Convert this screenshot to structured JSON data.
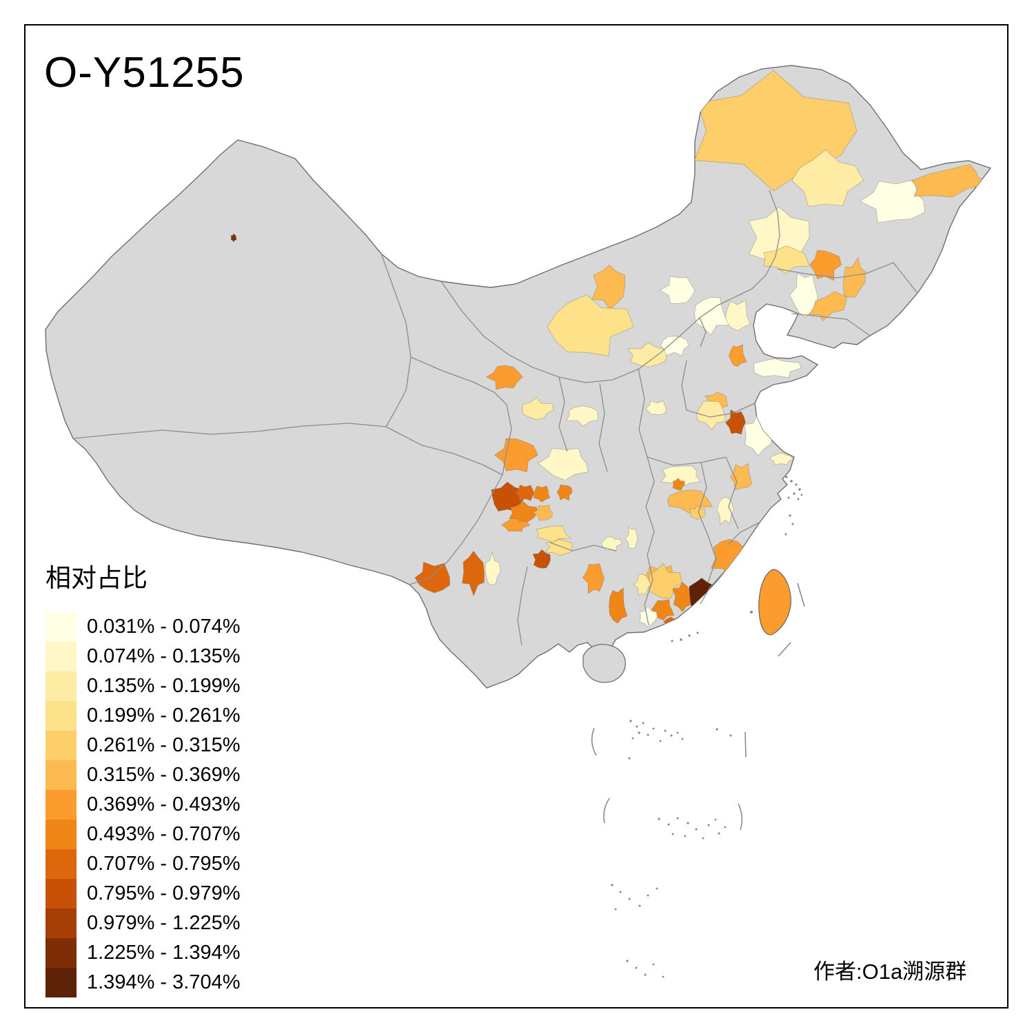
{
  "title": "O-Y51255",
  "attribution": "作者:O1a溯源群",
  "legend": {
    "title": "相对占比",
    "items": [
      {
        "range": "0.031% - 0.074%",
        "color": "#FFFFE3"
      },
      {
        "range": "0.074% - 0.135%",
        "color": "#FFF7C5"
      },
      {
        "range": "0.135% - 0.199%",
        "color": "#FEECA4"
      },
      {
        "range": "0.199% - 0.261%",
        "color": "#FDE289"
      },
      {
        "range": "0.261% - 0.315%",
        "color": "#FDCE6A"
      },
      {
        "range": "0.315% - 0.369%",
        "color": "#FDBA50"
      },
      {
        "range": "0.369% - 0.493%",
        "color": "#FC9C2F"
      },
      {
        "range": "0.493% - 0.707%",
        "color": "#F08518"
      },
      {
        "range": "0.707% - 0.795%",
        "color": "#DE660D"
      },
      {
        "range": "0.795% - 0.979%",
        "color": "#C75106"
      },
      {
        "range": "0.979% - 1.225%",
        "color": "#A63E05"
      },
      {
        "range": "1.225% - 1.394%",
        "color": "#7F2D05"
      },
      {
        "range": "1.394% - 3.704%",
        "color": "#5E2306"
      }
    ]
  },
  "map": {
    "no_data_fill": "#D8D8D8",
    "boundary_color": "#8C8C8C",
    "taiwan_class": 7,
    "region_fields": [
      "name",
      "class",
      "cx",
      "cy",
      "rx",
      "ry",
      "rot"
    ],
    "regions": [
      [
        "hulunbuir",
        5,
        1122,
        190,
        112,
        72,
        0
      ],
      [
        "daxinganling-east",
        3,
        1198,
        262,
        44,
        38,
        0
      ],
      [
        "heihe-cream",
        1,
        1300,
        292,
        44,
        30,
        0
      ],
      [
        "sanjiang-orange",
        6,
        1378,
        264,
        56,
        20,
        -10
      ],
      [
        "nenjiang-pale",
        2,
        1130,
        345,
        42,
        40,
        0
      ],
      [
        "shenyang-orange",
        7,
        1197,
        384,
        20,
        21,
        0
      ],
      [
        "changchun-cream",
        1,
        1168,
        428,
        19,
        30,
        0
      ],
      [
        "tongliao-pale",
        4,
        1140,
        376,
        33,
        17,
        0
      ],
      [
        "liaoyang-orange",
        6,
        1238,
        406,
        15,
        27,
        12
      ],
      [
        "dalian-orange",
        6,
        1203,
        443,
        28,
        15,
        -25
      ],
      [
        "chengde-pale",
        2,
        1070,
        458,
        18,
        21,
        0
      ],
      [
        "bayannur-orange",
        6,
        884,
        416,
        23,
        29,
        0
      ],
      [
        "ordos-yellow",
        4,
        851,
        474,
        54,
        41,
        0
      ],
      [
        "zhangjiakou-cream",
        1,
        985,
        421,
        22,
        20,
        0
      ],
      [
        "beijing-cream",
        1,
        1031,
        456,
        24,
        25,
        0
      ],
      [
        "shijiazhuang-pale",
        3,
        940,
        516,
        27,
        16,
        0
      ],
      [
        "taiyuan-cream",
        1,
        978,
        501,
        19,
        14,
        0
      ],
      [
        "linfen-pale",
        2,
        953,
        592,
        15,
        10,
        0
      ],
      [
        "yulin-pale",
        2,
        846,
        602,
        23,
        13,
        0
      ],
      [
        "yinchuan-pale",
        3,
        778,
        594,
        21,
        14,
        0
      ],
      [
        "lanzhou-orange",
        7,
        733,
        547,
        22,
        17,
        0
      ],
      [
        "dongying-orange",
        7,
        1070,
        516,
        12,
        15,
        0
      ],
      [
        "jinan-orange",
        6,
        1040,
        582,
        16,
        12,
        0
      ],
      [
        "yantai-cream",
        1,
        1124,
        534,
        33,
        13,
        0
      ],
      [
        "xuzhou-dark",
        10,
        1068,
        613,
        13,
        17,
        0
      ],
      [
        "shangqiu-pale",
        3,
        1032,
        600,
        21,
        19,
        0
      ],
      [
        "yancheng-cream",
        1,
        1100,
        631,
        20,
        26,
        0
      ],
      [
        "nantong-cream",
        2,
        1133,
        666,
        15,
        8,
        0
      ],
      [
        "chuzhou-orange",
        6,
        1076,
        692,
        15,
        18,
        0
      ],
      [
        "nanyang-pale",
        2,
        988,
        690,
        28,
        15,
        0
      ],
      [
        "xiantao-orange",
        8,
        984,
        703,
        8,
        8,
        0
      ],
      [
        "aba-orange",
        7,
        749,
        660,
        26,
        24,
        0
      ],
      [
        "hanzhong-pale",
        2,
        820,
        672,
        34,
        22,
        0
      ],
      [
        "karamay-dot",
        12,
        339,
        345,
        4,
        5,
        0
      ],
      [
        "chengdu-dark",
        10,
        736,
        722,
        23,
        20,
        0
      ],
      [
        "deyang-dark",
        9,
        762,
        715,
        13,
        11,
        0
      ],
      [
        "mianyang-orange",
        8,
        786,
        716,
        12,
        11,
        0
      ],
      [
        "leshan-orange",
        8,
        759,
        744,
        19,
        14,
        0
      ],
      [
        "yibin-orange",
        7,
        747,
        762,
        17,
        9,
        0
      ],
      [
        "neijiang-orange",
        6,
        789,
        744,
        13,
        11,
        0
      ],
      [
        "dazhou-pale",
        4,
        802,
        774,
        24,
        11,
        0
      ],
      [
        "zigong-dark",
        10,
        786,
        812,
        12,
        13,
        0
      ],
      [
        "chongqing-orange",
        8,
        819,
        714,
        10,
        11,
        0
      ],
      [
        "baoshan-orange",
        9,
        630,
        838,
        25,
        21,
        0
      ],
      [
        "kunming-orange",
        9,
        687,
        830,
        16,
        27,
        0
      ],
      [
        "yuxi-cream",
        2,
        714,
        828,
        10,
        21,
        0
      ],
      [
        "hechi-orange",
        7,
        862,
        838,
        14,
        21,
        0
      ],
      [
        "nanning-orange",
        8,
        896,
        879,
        13,
        24,
        0
      ],
      [
        "zunyi-pale",
        4,
        812,
        794,
        19,
        11,
        0
      ],
      [
        "guilin-pale",
        2,
        886,
        789,
        13,
        10,
        0
      ],
      [
        "enshi-cream",
        2,
        917,
        781,
        8,
        15,
        0
      ],
      [
        "wuhan-orange",
        6,
        1000,
        726,
        32,
        15,
        0
      ],
      [
        "ezhou-orange",
        5,
        1012,
        744,
        11,
        9,
        0
      ],
      [
        "huanggang-pale",
        2,
        1052,
        740,
        11,
        19,
        0
      ],
      [
        "yongzhou-orange",
        6,
        958,
        839,
        25,
        17,
        0
      ],
      [
        "ganzhou-orange",
        7,
        1058,
        808,
        24,
        26,
        0
      ],
      [
        "shaoguan-orange",
        5,
        962,
        845,
        22,
        23,
        0
      ],
      [
        "qingyuan-pale",
        3,
        932,
        848,
        10,
        15,
        0
      ],
      [
        "guangzhou-orange",
        8,
        962,
        884,
        15,
        14,
        0
      ],
      [
        "heyuan-orange",
        8,
        990,
        866,
        13,
        19,
        0
      ],
      [
        "meizhou-dark",
        13,
        1018,
        864,
        19,
        24,
        0
      ],
      [
        "chaozhou-dark",
        12,
        1013,
        884,
        8,
        7,
        0
      ],
      [
        "shantou-orange",
        8,
        1031,
        877,
        8,
        11,
        0
      ],
      [
        "zhaoqing-cream",
        1,
        940,
        895,
        12,
        13,
        0
      ],
      [
        "shenzhen-dark",
        9,
        973,
        902,
        9,
        6,
        0
      ]
    ]
  }
}
